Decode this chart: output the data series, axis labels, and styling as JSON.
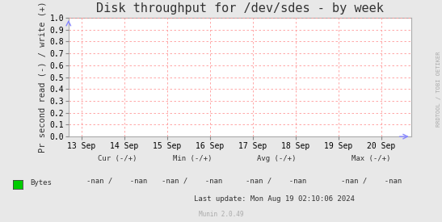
{
  "title": "Disk throughput for /dev/sdes - by week",
  "ylabel": "Pr second read (-) / write (+)",
  "background_color": "#e8e8e8",
  "plot_background_color": "#ffffff",
  "grid_color": "#ff9999",
  "border_color": "#aaaaaa",
  "ylim": [
    0.0,
    1.0
  ],
  "yticks": [
    0.0,
    0.1,
    0.2,
    0.3,
    0.4,
    0.5,
    0.6,
    0.7,
    0.8,
    0.9,
    1.0
  ],
  "xtick_labels": [
    "13 Sep",
    "14 Sep",
    "15 Sep",
    "16 Sep",
    "17 Sep",
    "18 Sep",
    "19 Sep",
    "20 Sep"
  ],
  "xtick_positions": [
    0,
    1,
    2,
    3,
    4,
    5,
    6,
    7
  ],
  "xlim": [
    -0.3,
    7.7
  ],
  "legend_label": "Bytes",
  "legend_color": "#00cc00",
  "cur_label": "Cur (-/+)",
  "min_label": "Min (-/+)",
  "avg_label": "Avg (-/+)",
  "max_label": "Max (-/+)",
  "cur_val": "-nan /    -nan",
  "min_val": "-nan /    -nan",
  "avg_val": "-nan /    -nan",
  "max_val": "-nan /    -nan",
  "last_update": "Last update: Mon Aug 19 02:10:06 2024",
  "munin_version": "Munin 2.0.49",
  "rrdtool_label": "RRDTOOL / TOBI OETIKER",
  "title_fontsize": 11,
  "axis_fontsize": 7.5,
  "tick_fontsize": 7,
  "small_fontsize": 6.5,
  "arrow_color": "#8888ff"
}
